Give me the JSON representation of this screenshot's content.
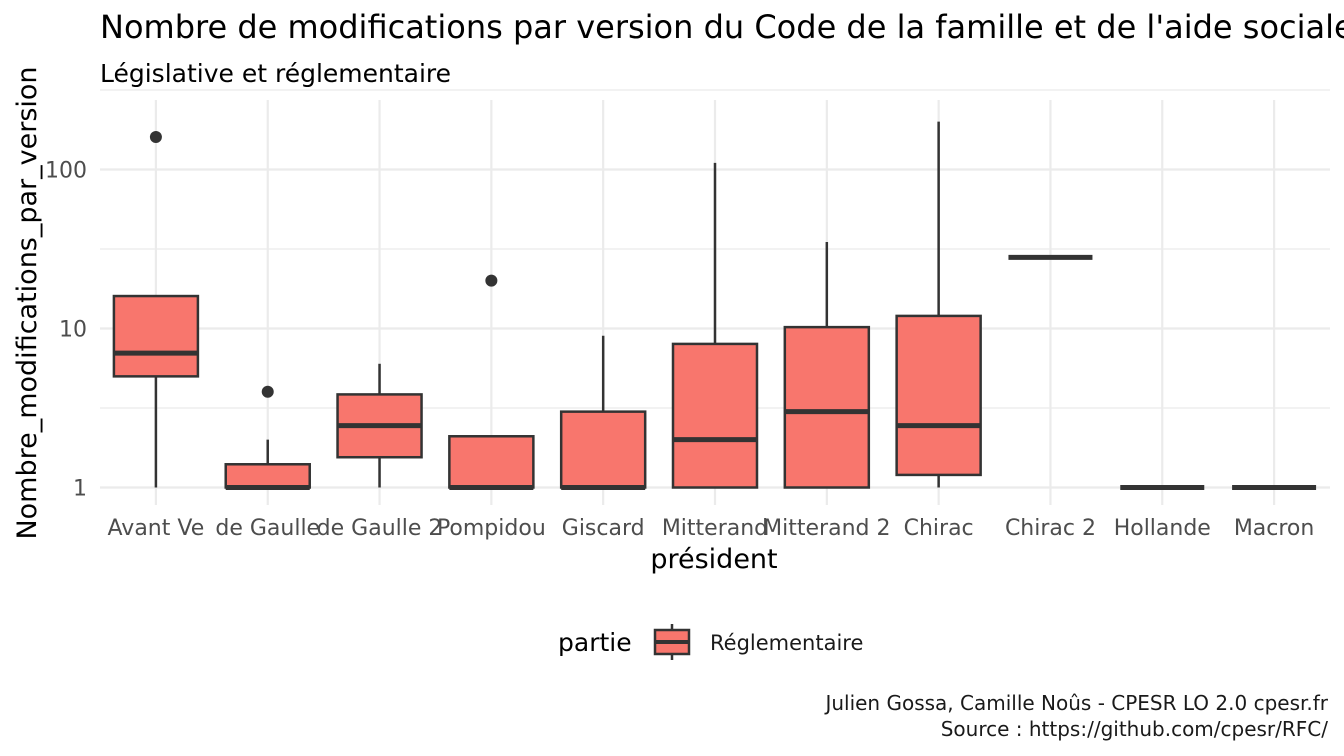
{
  "chart_data": {
    "type": "boxplot",
    "title": "Nombre de modifications par version du Code de la famille et de l'aide sociale",
    "subtitle": "Législative et réglementaire",
    "xlabel": "président",
    "ylabel": "Nombre_modifications_par_version",
    "y_scale": "log10",
    "ylim": [
      0.83,
      260
    ],
    "y_ticks": [
      1,
      10,
      100
    ],
    "y_tick_labels": [
      "1",
      "10",
      "100"
    ],
    "grid": true,
    "legend": {
      "title": "partie",
      "position": "bottom",
      "entries": [
        {
          "label": "Réglementaire",
          "color": "#f8766d"
        }
      ]
    },
    "categories": [
      "Avant Ve",
      "de Gaulle",
      "de Gaulle 2",
      "Pompidou",
      "Giscard",
      "Mitterand",
      "Mitterand 2",
      "Chirac",
      "Chirac 2",
      "Hollande",
      "Macron"
    ],
    "series": [
      {
        "name": "Réglementaire",
        "color": "#f8766d",
        "boxes": [
          {
            "category": "Avant Ve",
            "min": 1,
            "q1": 5,
            "median": 7,
            "q3": 16,
            "max": 16,
            "outliers": [
              160
            ]
          },
          {
            "category": "de Gaulle",
            "min": 1,
            "q1": 1,
            "median": 1,
            "q3": 1.4,
            "max": 2,
            "outliers": [
              4
            ]
          },
          {
            "category": "de Gaulle 2",
            "min": 1,
            "q1": 1.55,
            "median": 2.45,
            "q3": 3.85,
            "max": 6,
            "outliers": []
          },
          {
            "category": "Pompidou",
            "min": 1,
            "q1": 1,
            "median": 1,
            "q3": 2.1,
            "max": 2.1,
            "outliers": [
              20
            ]
          },
          {
            "category": "Giscard",
            "min": 1,
            "q1": 1,
            "median": 1,
            "q3": 3,
            "max": 9,
            "outliers": []
          },
          {
            "category": "Mitterand",
            "min": 1,
            "q1": 1,
            "median": 2,
            "q3": 8,
            "max": 110,
            "outliers": []
          },
          {
            "category": "Mitterand 2",
            "min": 1,
            "q1": 1,
            "median": 3,
            "q3": 10.2,
            "max": 35,
            "outliers": []
          },
          {
            "category": "Chirac",
            "min": 1,
            "q1": 1.2,
            "median": 2.45,
            "q3": 12,
            "max": 200,
            "outliers": []
          },
          {
            "category": "Chirac 2",
            "min": 28,
            "q1": 28,
            "median": 28,
            "q3": 28,
            "max": 28,
            "outliers": []
          },
          {
            "category": "Hollande",
            "min": 1,
            "q1": 1,
            "median": 1,
            "q3": 1,
            "max": 1,
            "outliers": []
          },
          {
            "category": "Macron",
            "min": 1,
            "q1": 1,
            "median": 1,
            "q3": 1,
            "max": 1,
            "outliers": []
          }
        ]
      }
    ],
    "caption": [
      "Julien Gossa, Camille Noûs - CPESR LO 2.0 cpesr.fr",
      "Source : https://github.com/cpesr/RFC/"
    ]
  }
}
